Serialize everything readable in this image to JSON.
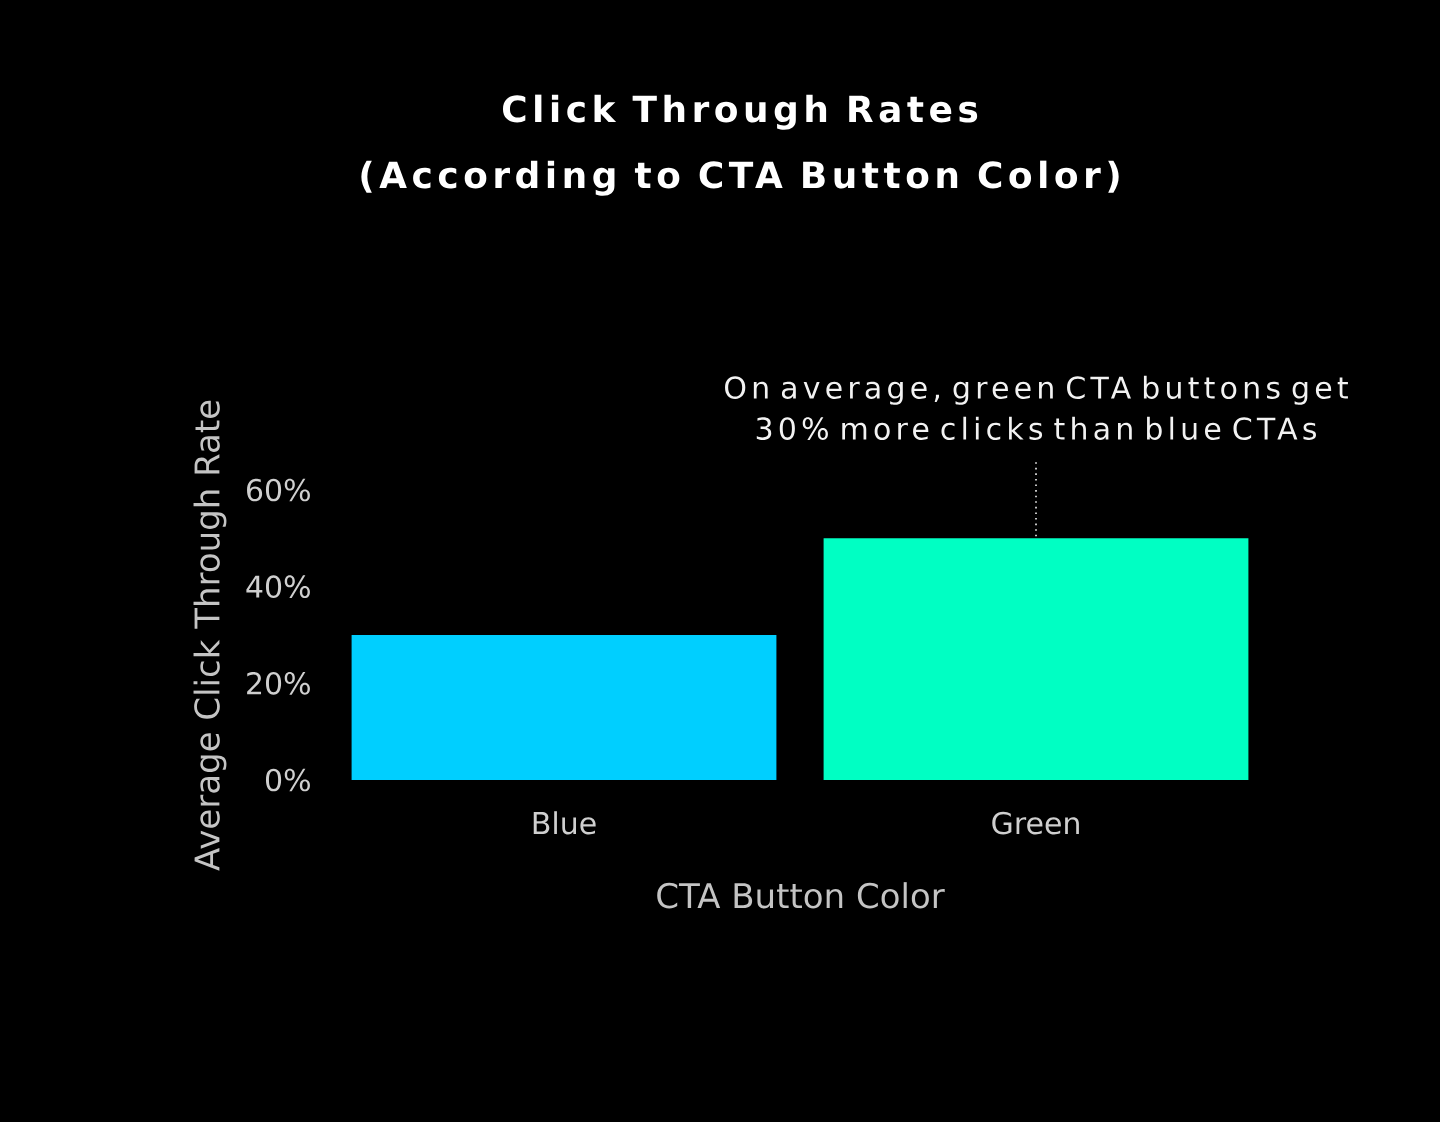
{
  "chart_data": {
    "type": "bar",
    "title": "Click Through Rates",
    "subtitle": "(According to CTA Button Color)",
    "xlabel": "CTA Button Color",
    "ylabel": "Average Click Through Rate",
    "categories": [
      "Blue",
      "Green"
    ],
    "values": [
      30,
      50
    ],
    "colors": [
      "#00cfff",
      "#00ffc3"
    ],
    "ylim": [
      0,
      60
    ],
    "yticks": [
      {
        "value": 0,
        "label": "0%"
      },
      {
        "value": 20,
        "label": "20%"
      },
      {
        "value": 40,
        "label": "40%"
      },
      {
        "value": 60,
        "label": "60%"
      }
    ],
    "annotations": [
      {
        "text": "On average, green CTA buttons get 30% more clicks than blue CTAs",
        "x": "Green",
        "y": 50
      }
    ]
  }
}
